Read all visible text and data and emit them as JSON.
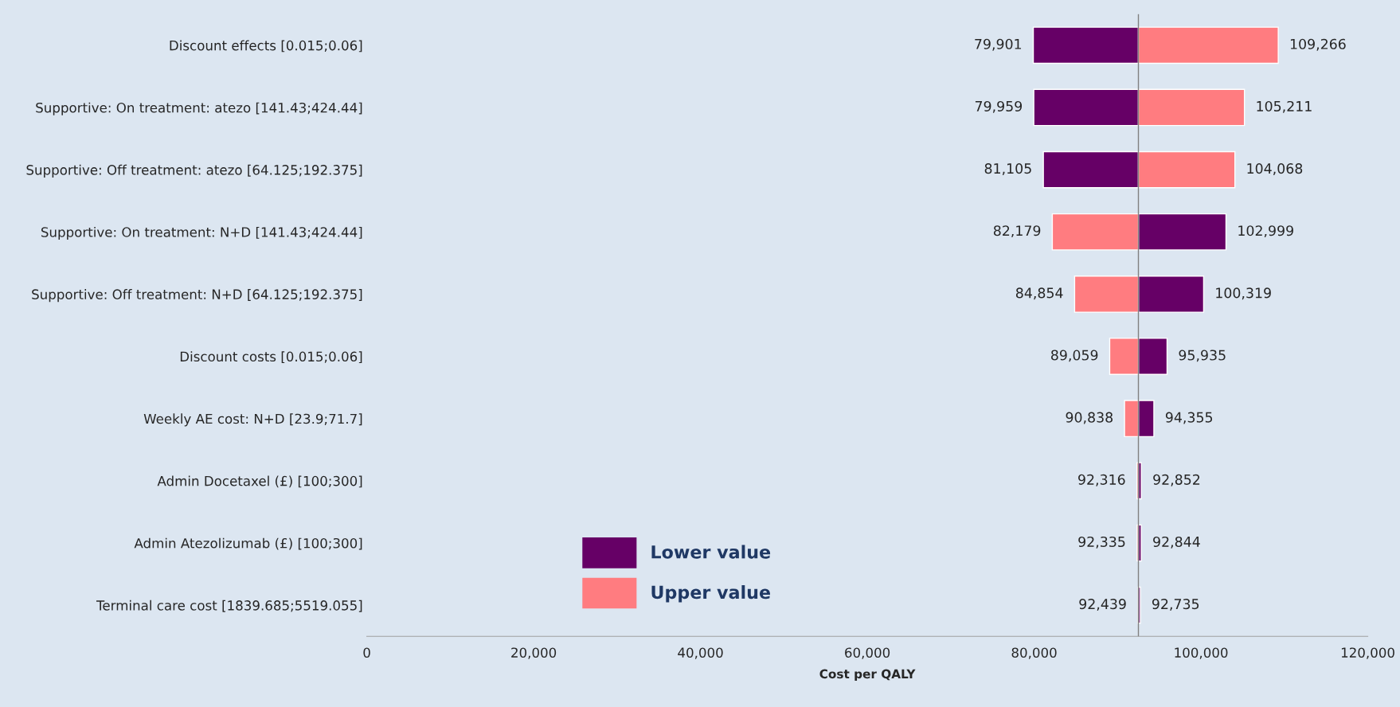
{
  "chart_data": {
    "type": "bar",
    "orientation": "horizontal",
    "xlabel": "Cost per QALY",
    "categories": [
      "Discount effects [0.015;0.06]",
      "Supportive: On treatment: atezo [141.43;424.44]",
      "Supportive: Off treatment: atezo [64.125;192.375]",
      "Supportive: On treatment: N+D [141.43;424.44]",
      "Supportive: Off treatment: N+D [64.125;192.375]",
      "Discount costs [0.015;0.06]",
      "Weekly AE cost: N+D [23.9;71.7]",
      "Admin Docetaxel (£) [100;300]",
      "Admin Atezolizumab (£) [100;300]",
      "Terminal care cost [1839.685;5519.055]"
    ],
    "series": [
      {
        "name": "Lower value",
        "color": "#660066",
        "base": [
          92500,
          92500,
          92500,
          92500,
          92500,
          92500,
          92500,
          92500,
          92500,
          92500
        ],
        "values": [
          -12599,
          -12541,
          -11395,
          10499,
          7819,
          3435,
          1855,
          352,
          344,
          235
        ],
        "value_labels": [
          "79,901",
          "79,959",
          "81,105",
          "102,999",
          "100,319",
          "95,935",
          "94,355",
          "92,852",
          "92,844",
          "92,735"
        ]
      },
      {
        "name": "Upper value",
        "color": "#ff7c80",
        "base": [
          92500,
          92500,
          92500,
          92500,
          92500,
          92500,
          92500,
          92500,
          92500,
          92500
        ],
        "values": [
          16766,
          12711,
          11568,
          -10321,
          -7646,
          -3441,
          -1662,
          -184,
          -165,
          -61
        ],
        "value_labels": [
          "109,266",
          "105,211",
          "104,068",
          "82,179",
          "84,854",
          "89,059",
          "90,838",
          "92,316",
          "92,335",
          "92,439"
        ]
      }
    ],
    "xlim": [
      0,
      120000
    ],
    "xticks": [
      {
        "value": 0,
        "label": "0"
      },
      {
        "value": 20000,
        "label": "20,000"
      },
      {
        "value": 40000,
        "label": "40,000"
      },
      {
        "value": 60000,
        "label": "60,000"
      },
      {
        "value": 80000,
        "label": "80,000"
      },
      {
        "value": 100000,
        "label": "100,000"
      },
      {
        "value": 120000,
        "label": "120,000"
      }
    ],
    "ref_lines": [
      {
        "axis": "x",
        "value": 92500,
        "color": "#808080"
      }
    ],
    "legend": "bottom left",
    "grid": false
  }
}
